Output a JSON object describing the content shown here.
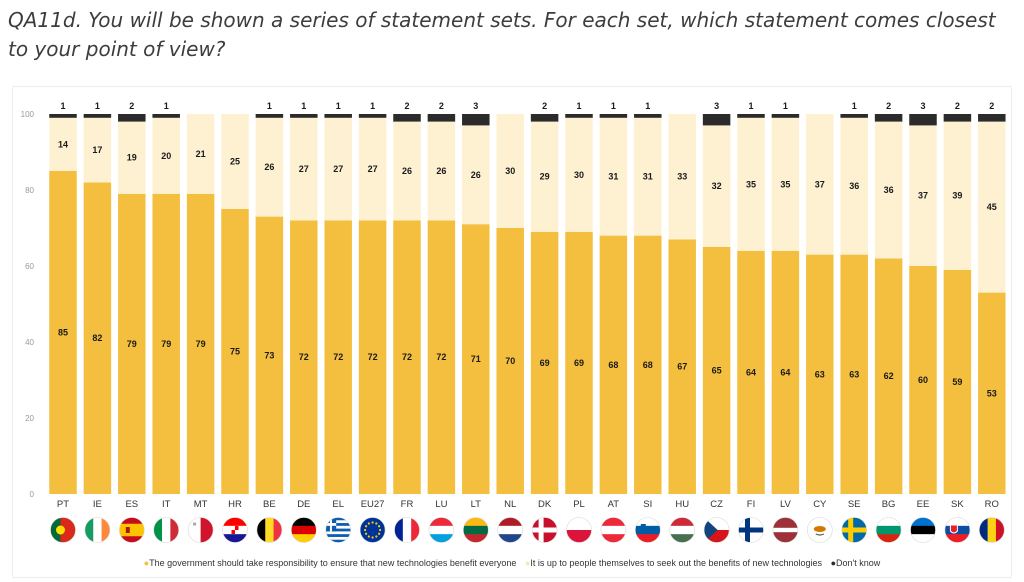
{
  "question": "QA11d. You will be shown a series of statement sets. For each set, which statement comes closest to your point of view?",
  "colors": {
    "government": "#f4bf3f",
    "people": "#fdf1d2",
    "dont_know": "#2b2b2b"
  },
  "chart_data": {
    "type": "bar",
    "stacked": true,
    "ylim": [
      0,
      100
    ],
    "yticks": [
      0,
      20,
      40,
      60,
      80,
      100
    ],
    "categories": [
      "PT",
      "IE",
      "ES",
      "IT",
      "MT",
      "HR",
      "BE",
      "DE",
      "EL",
      "EU27",
      "FR",
      "LU",
      "LT",
      "NL",
      "DK",
      "PL",
      "AT",
      "SI",
      "HU",
      "CZ",
      "FI",
      "LV",
      "CY",
      "SE",
      "BG",
      "EE",
      "SK",
      "RO"
    ],
    "series": [
      {
        "name": "The government should take responsibility to ensure that new technologies benefit everyone",
        "values": [
          85,
          82,
          79,
          79,
          79,
          75,
          73,
          72,
          72,
          72,
          72,
          72,
          71,
          70,
          69,
          69,
          68,
          68,
          67,
          65,
          64,
          64,
          63,
          63,
          62,
          60,
          59,
          53
        ]
      },
      {
        "name": "It is up to people themselves to seek out the benefits of new technologies",
        "values": [
          14,
          17,
          19,
          20,
          21,
          25,
          26,
          27,
          27,
          27,
          26,
          26,
          26,
          30,
          29,
          30,
          31,
          31,
          33,
          32,
          35,
          35,
          37,
          36,
          36,
          37,
          39,
          45
        ]
      },
      {
        "name": "Don't know",
        "values": [
          1,
          1,
          2,
          1,
          0,
          0,
          1,
          1,
          1,
          1,
          2,
          2,
          3,
          0,
          2,
          1,
          1,
          1,
          0,
          3,
          1,
          1,
          0,
          1,
          2,
          3,
          2,
          2
        ]
      }
    ],
    "flags": [
      "portugal-flag",
      "ireland-flag",
      "spain-flag",
      "italy-flag",
      "malta-flag",
      "croatia-flag",
      "belgium-flag",
      "germany-flag",
      "greece-flag",
      "eu-flag",
      "france-flag",
      "luxembourg-flag",
      "lithuania-flag",
      "netherlands-flag",
      "denmark-flag",
      "poland-flag",
      "austria-flag",
      "slovenia-flag",
      "hungary-flag",
      "czechia-flag",
      "finland-flag",
      "latvia-flag",
      "cyprus-flag",
      "sweden-flag",
      "bulgaria-flag",
      "estonia-flag",
      "slovakia-flag",
      "romania-flag"
    ],
    "legend": {
      "government": "The government should take responsibility to ensure that new technologies benefit everyone",
      "people": "It is up to people themselves to seek out the benefits of new technologies",
      "dont_know": "Don't know"
    }
  }
}
